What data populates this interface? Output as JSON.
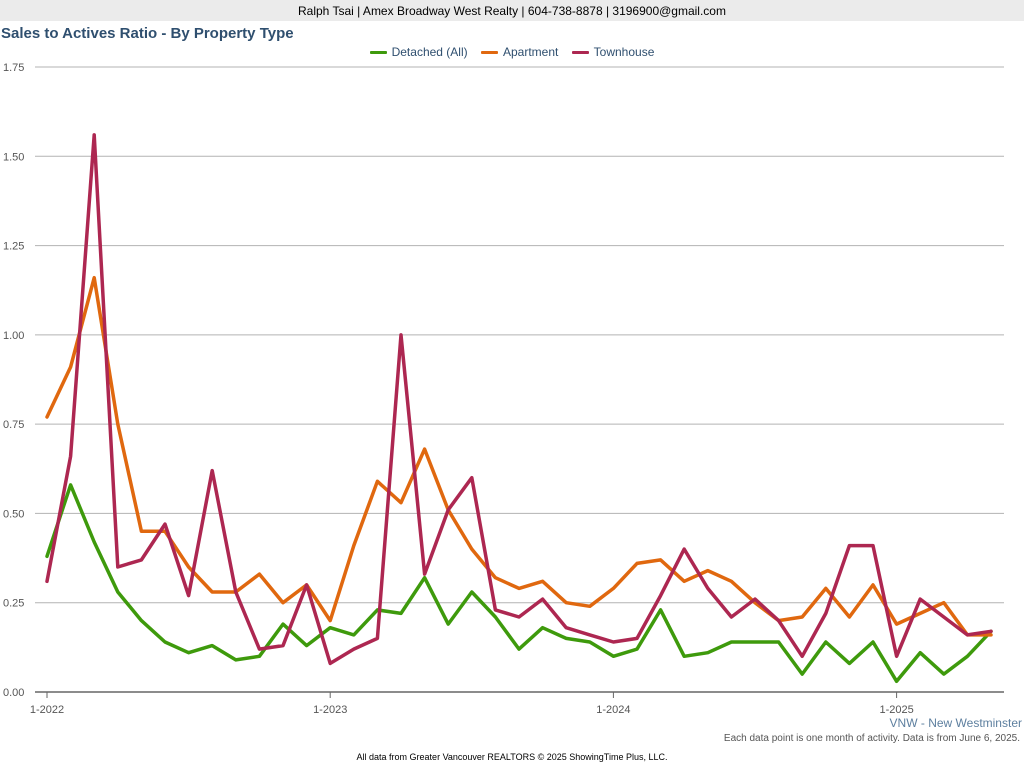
{
  "header": {
    "contact": "Ralph Tsai | Amex Broadway West Realty | 604-738-8878 | 3196900@gmail.com"
  },
  "colors": {
    "detached": "#3e9a0c",
    "apartment": "#e0680f",
    "townhouse": "#ad2751",
    "grid": "#b3b3b3",
    "axis": "#666666",
    "title": "#2f4f6f"
  },
  "chart_data": {
    "type": "line",
    "title": "Sales to Actives Ratio - By Property Type",
    "xlabel": "",
    "ylabel": "",
    "ylim": [
      0,
      1.75
    ],
    "y_ticks": [
      "0.00",
      "0.25",
      "0.50",
      "0.75",
      "1.00",
      "1.25",
      "1.50",
      "1.75"
    ],
    "x_ticks": [
      "1-2022",
      "1-2023",
      "1-2024",
      "1-2025"
    ],
    "x_start": "2022-01",
    "x_end": "2025-05",
    "grid": true,
    "legend": "top-center",
    "series": [
      {
        "name": "Detached (All)",
        "key": "detached",
        "values": [
          0.38,
          0.58,
          0.42,
          0.28,
          0.2,
          0.14,
          0.11,
          0.13,
          0.09,
          0.1,
          0.19,
          0.13,
          0.18,
          0.16,
          0.23,
          0.22,
          0.32,
          0.19,
          0.28,
          0.21,
          0.12,
          0.18,
          0.15,
          0.14,
          0.1,
          0.12,
          0.23,
          0.1,
          0.11,
          0.14,
          0.14,
          0.14,
          0.05,
          0.14,
          0.08,
          0.14,
          0.03,
          0.11,
          0.05,
          0.1,
          0.17
        ]
      },
      {
        "name": "Apartment",
        "key": "apartment",
        "values": [
          0.77,
          0.91,
          1.16,
          0.75,
          0.45,
          0.45,
          0.35,
          0.28,
          0.28,
          0.33,
          0.25,
          0.3,
          0.2,
          0.41,
          0.59,
          0.53,
          0.68,
          0.51,
          0.4,
          0.32,
          0.29,
          0.31,
          0.25,
          0.24,
          0.29,
          0.36,
          0.37,
          0.31,
          0.34,
          0.31,
          0.25,
          0.2,
          0.21,
          0.29,
          0.21,
          0.3,
          0.19,
          0.22,
          0.25,
          0.16,
          0.16
        ]
      },
      {
        "name": "Townhouse",
        "key": "townhouse",
        "values": [
          0.31,
          0.66,
          1.56,
          0.35,
          0.37,
          0.47,
          0.27,
          0.62,
          0.28,
          0.12,
          0.13,
          0.3,
          0.08,
          0.12,
          0.15,
          1.0,
          0.33,
          0.51,
          0.6,
          0.23,
          0.21,
          0.26,
          0.18,
          0.16,
          0.14,
          0.15,
          0.27,
          0.4,
          0.29,
          0.21,
          0.26,
          0.2,
          0.1,
          0.22,
          0.41,
          0.41,
          0.1,
          0.26,
          0.21,
          0.16,
          0.17
        ]
      }
    ]
  },
  "region_label": "VNW - New Westminster",
  "note": "Each data point is one month of activity. Data is from June 6, 2025.",
  "footer": "All data from Greater Vancouver REALTORS © 2025 ShowingTime Plus, LLC."
}
